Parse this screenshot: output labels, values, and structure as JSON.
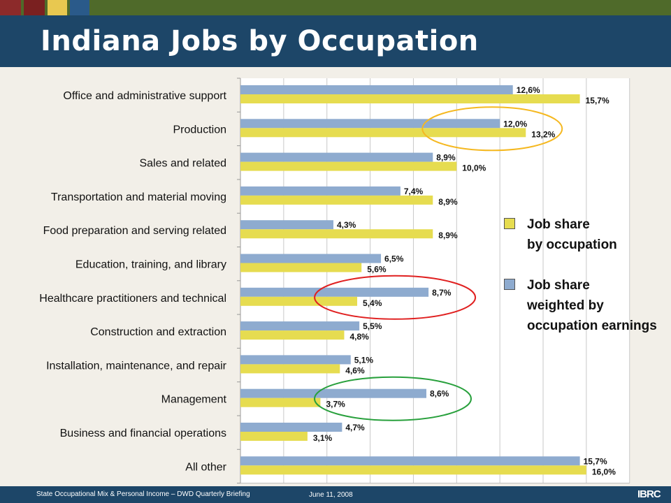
{
  "header": {
    "title": "Indiana Jobs by Occupation"
  },
  "footer": {
    "left": "State Occupational Mix & Personal Income – DWD Quarterly Briefing",
    "date": "June 11, 2008",
    "logo": "IBRC"
  },
  "colors": {
    "job_share": "#e6dc50",
    "weighted": "#8eabcf",
    "ellipse_production": "#f5b820",
    "ellipse_healthcare": "#e02020",
    "ellipse_management": "#28a03c"
  },
  "chart_data": {
    "type": "bar",
    "orientation": "horizontal",
    "categories": [
      "Office and administrative support",
      "Production",
      "Sales and related",
      "Transportation and material moving",
      "Food preparation and serving related",
      "Education, training, and library",
      "Healthcare practitioners and technical",
      "Construction and extraction",
      "Installation, maintenance, and repair",
      "Management",
      "Business and financial operations",
      "All other"
    ],
    "series": [
      {
        "name": "Job share weighted by occupation earnings",
        "values": [
          12.6,
          12.0,
          8.9,
          7.4,
          4.3,
          6.5,
          8.7,
          5.5,
          5.1,
          8.6,
          4.7,
          15.7
        ],
        "labels": [
          "12,6%",
          "12,0%",
          "8,9%",
          "7,4%",
          "4,3%",
          "6,5%",
          "8,7%",
          "5,5%",
          "5,1%",
          "8,6%",
          "4,7%",
          "15,7%"
        ]
      },
      {
        "name": "Job share by occupation",
        "values": [
          15.7,
          13.2,
          10.0,
          8.9,
          8.9,
          5.6,
          5.4,
          4.8,
          4.6,
          3.7,
          3.1,
          16.0
        ],
        "labels": [
          "15,7%",
          "13,2%",
          "10,0%",
          "8,9%",
          "8,9%",
          "5,6%",
          "5,4%",
          "4,8%",
          "4,6%",
          "3,7%",
          "3,1%",
          "16,0%"
        ]
      }
    ],
    "xlim": [
      0,
      18
    ],
    "grid": true,
    "legend": {
      "placement": "right",
      "items": [
        {
          "lines": [
            "Job share",
            "by occupation"
          ]
        },
        {
          "lines": [
            "Job share",
            "weighted by",
            "occupation earnings"
          ]
        }
      ]
    },
    "highlights": [
      "Production",
      "Healthcare practitioners and technical",
      "Management"
    ]
  }
}
